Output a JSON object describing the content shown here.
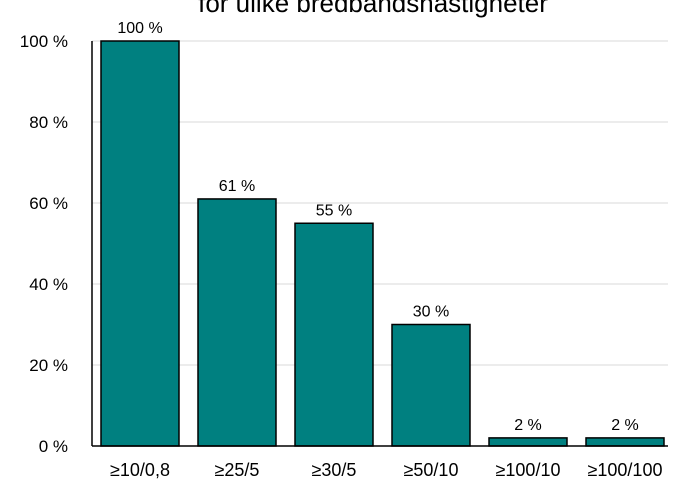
{
  "chart_data": {
    "type": "bar",
    "title": "for ulike bredbåndshastigheter",
    "categories": [
      "≥10/0,8",
      "≥25/5",
      "≥30/5",
      "≥50/10",
      "≥100/10",
      "≥100/100"
    ],
    "values": [
      100,
      61,
      55,
      30,
      2,
      2
    ],
    "data_labels": [
      "100 %",
      "61 %",
      "55 %",
      "30 %",
      "2 %",
      "2 %"
    ],
    "ylim": [
      0,
      100
    ],
    "yticks": [
      {
        "value": 0,
        "label": "0 %"
      },
      {
        "value": 20,
        "label": "20 %"
      },
      {
        "value": 40,
        "label": "40 %"
      },
      {
        "value": 60,
        "label": "60 %"
      },
      {
        "value": 80,
        "label": "80 %"
      },
      {
        "value": 100,
        "label": "100 %"
      }
    ],
    "xlabel": "",
    "ylabel": "",
    "grid": true,
    "legend": "none",
    "bar_color": "#008080",
    "bar_edge_color": "#000000",
    "gridline_color": "#d9d9d9"
  }
}
